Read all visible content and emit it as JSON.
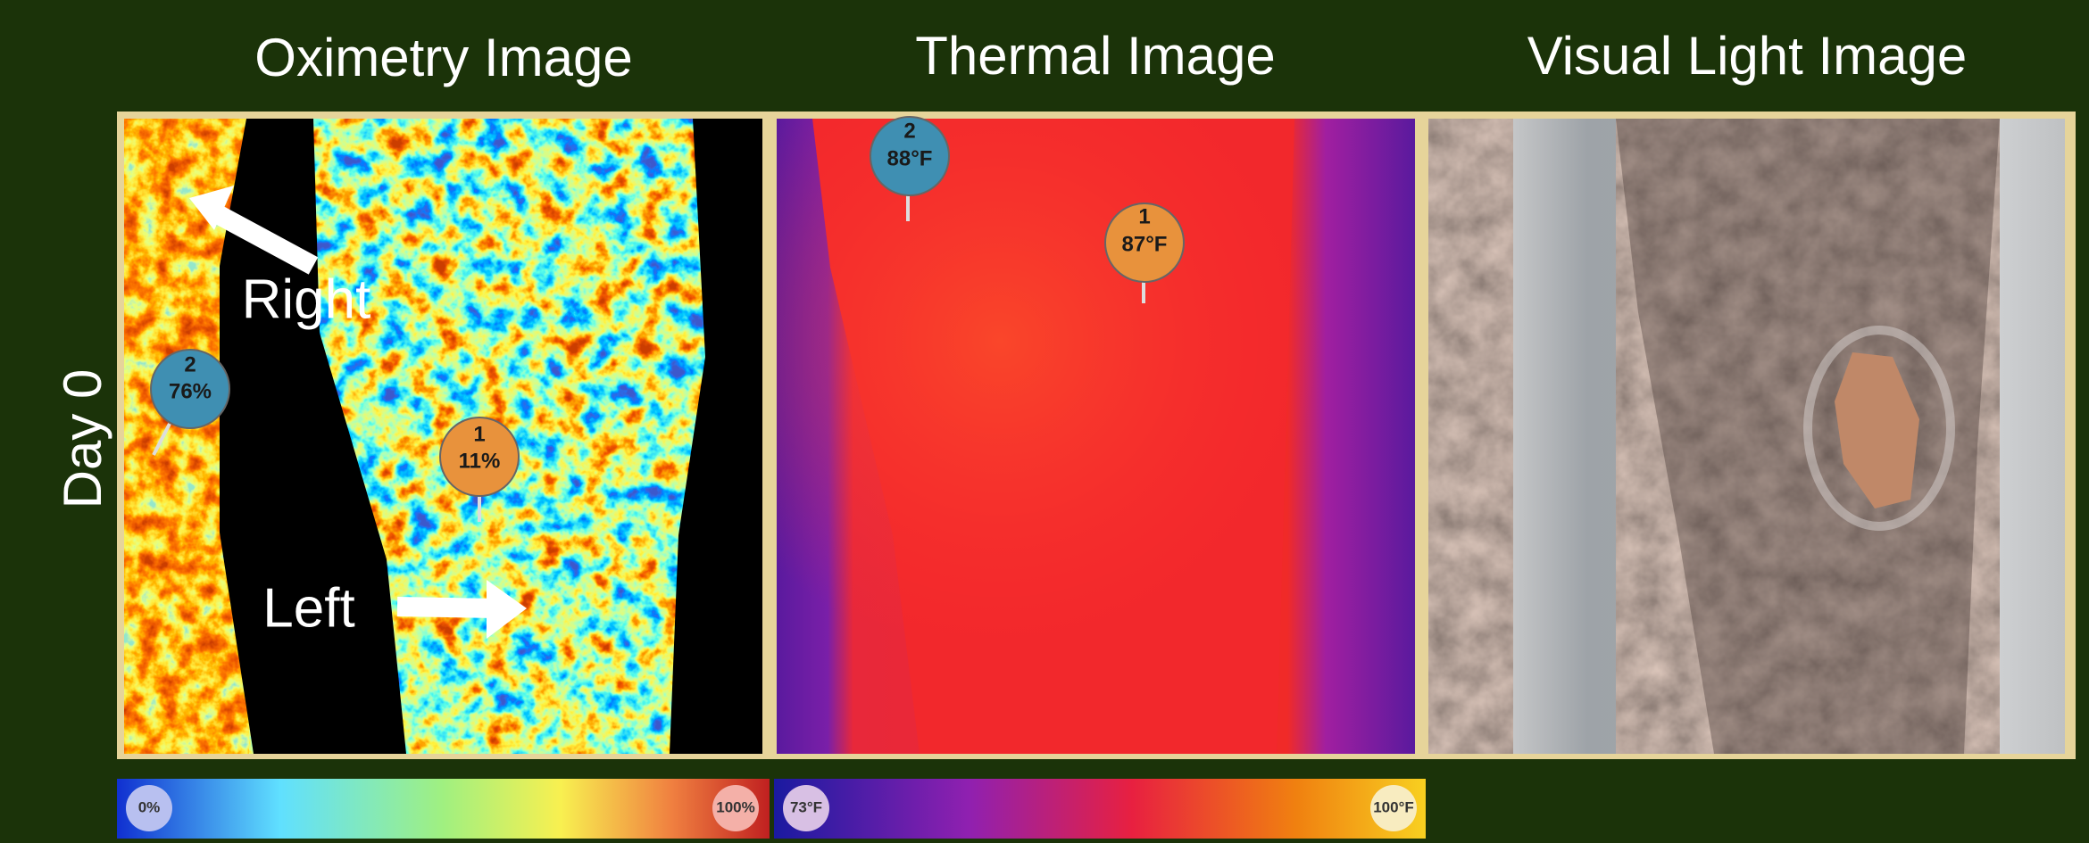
{
  "titles": [
    "Oximetry Image",
    "Thermal Image",
    "Visual Light Image"
  ],
  "row_label": "Day 0",
  "oximetry": {
    "arrow_labels": [
      "Right",
      "Left"
    ],
    "markers": [
      {
        "number": "1",
        "value": "11%"
      },
      {
        "number": "2",
        "value": "76%"
      }
    ],
    "scale": [
      "0%",
      "100%"
    ]
  },
  "thermal": {
    "markers": [
      {
        "number": "1",
        "value": "87°F"
      },
      {
        "number": "2",
        "value": "88°F"
      }
    ],
    "scale": [
      "73°F",
      "100°F"
    ]
  }
}
